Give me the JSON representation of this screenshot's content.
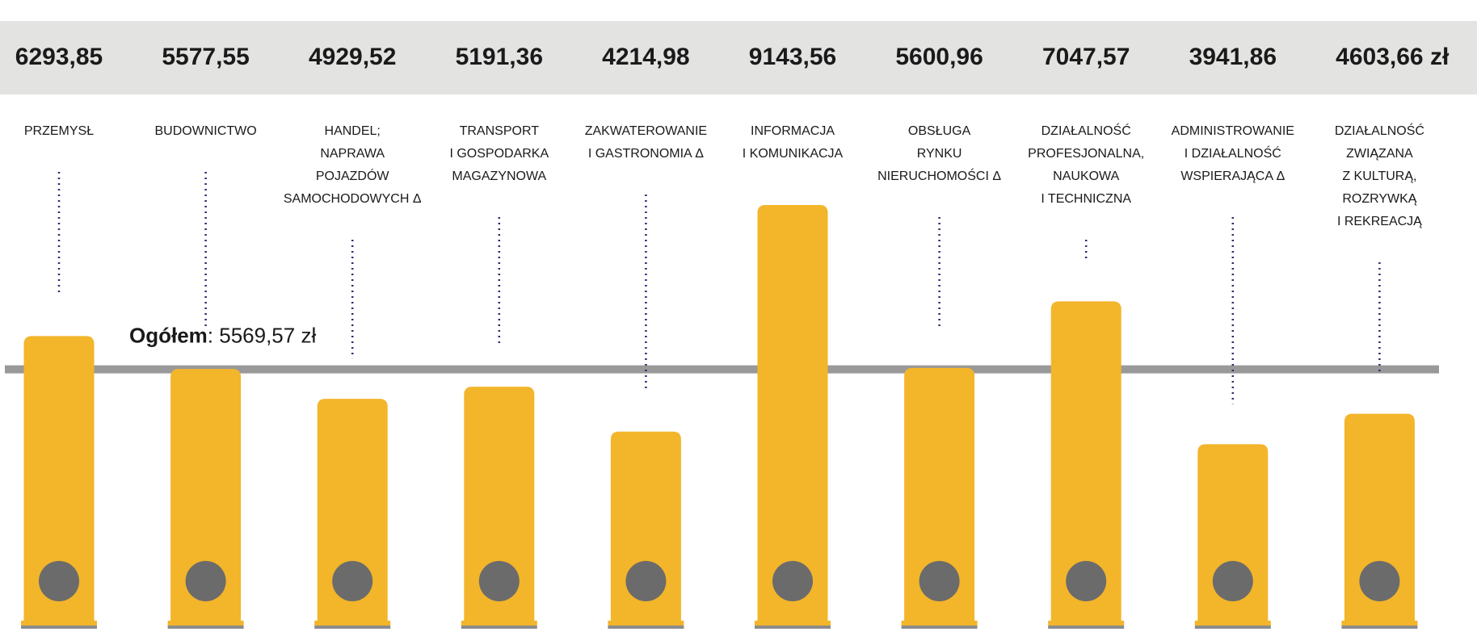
{
  "chart_data": {
    "type": "bar",
    "categories": [
      "PRZEMYSŁ",
      "BUDOWNICTWO",
      "HANDEL;\nNAPRAWA\nPOJAZDÓW\nSAMOCHODOWYCH Δ",
      "TRANSPORT\nI GOSPODARKA\nMAGAZYNOWA",
      "ZAKWATEROWANIE\nI GASTRONOMIA Δ",
      "INFORMACJA\nI KOMUNIKACJA",
      "OBSŁUGA\nRYNKU\nNIERUCHOMOŚCI Δ",
      "DZIAŁALNOŚĆ\nPROFESJONALNA,\nNAUKOWA\nI TECHNICZNA",
      "ADMINISTROWANIE\nI DZIAŁALNOŚĆ\nWSPIERAJĄCA Δ",
      "DZIAŁALNOŚĆ\nZWIĄZANA\nZ KULTURĄ,\nROZRYWKĄ\nI REKREACJĄ"
    ],
    "values": [
      6293.85,
      5577.55,
      4929.52,
      5191.36,
      4214.98,
      9143.56,
      5600.96,
      7047.57,
      3941.86,
      4603.66
    ],
    "value_labels": [
      "6293,85",
      "5577,55",
      "4929,52",
      "5191,36",
      "4214,98",
      "9143,56",
      "5600,96",
      "7047,57",
      "3941,86",
      "4603,66"
    ],
    "unit": "zł",
    "color": "#f3b52a",
    "ylim": [
      0,
      13600
    ],
    "reference": {
      "label": "Ogółem",
      "value": 5569.57,
      "value_label": ": 5569,57 zł",
      "color": "#999999"
    }
  }
}
